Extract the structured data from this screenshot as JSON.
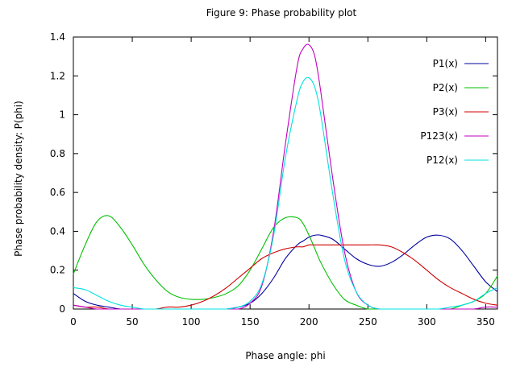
{
  "chart_data": {
    "type": "line",
    "title": "Figure 9:  Phase probability plot",
    "xlabel": "Phase angle: phi",
    "ylabel": "Phase probability density: P(phi)",
    "xlim": [
      0,
      360
    ],
    "ylim": [
      0,
      1.4
    ],
    "xticks": [
      "0",
      "50",
      "100",
      "150",
      "200",
      "250",
      "300",
      "350"
    ],
    "yticks": [
      "0",
      "0.2",
      "0.4",
      "0.6",
      "0.8",
      "1",
      "1.2",
      "1.4"
    ],
    "grid": false,
    "legend_position": "top-right",
    "x": [
      0,
      10,
      20,
      30,
      40,
      50,
      60,
      70,
      80,
      90,
      100,
      110,
      120,
      130,
      140,
      150,
      160,
      170,
      180,
      190,
      195,
      200,
      205,
      210,
      220,
      230,
      240,
      250,
      260,
      270,
      280,
      290,
      300,
      310,
      320,
      330,
      340,
      350,
      360
    ],
    "series": [
      {
        "name": "P1(x)",
        "color": "#0000a0",
        "values": [
          0.08,
          0.04,
          0.02,
          0.01,
          0.0,
          0.0,
          0.0,
          0.0,
          0.0,
          0.0,
          0.0,
          0.0,
          0.0,
          0.0,
          0.01,
          0.03,
          0.08,
          0.16,
          0.26,
          0.33,
          0.35,
          0.37,
          0.38,
          0.38,
          0.36,
          0.31,
          0.26,
          0.23,
          0.22,
          0.24,
          0.28,
          0.33,
          0.37,
          0.38,
          0.36,
          0.3,
          0.22,
          0.14,
          0.09
        ]
      },
      {
        "name": "P2(x)",
        "color": "#00c000",
        "values": [
          0.18,
          0.33,
          0.45,
          0.48,
          0.42,
          0.33,
          0.23,
          0.15,
          0.09,
          0.06,
          0.05,
          0.05,
          0.06,
          0.08,
          0.12,
          0.2,
          0.31,
          0.42,
          0.47,
          0.47,
          0.44,
          0.38,
          0.31,
          0.24,
          0.13,
          0.05,
          0.02,
          0.0,
          0.0,
          0.0,
          0.0,
          0.0,
          0.0,
          0.0,
          0.0,
          0.02,
          0.04,
          0.08,
          0.17
        ]
      },
      {
        "name": "P3(x)",
        "color": "#d00000",
        "values": [
          0.02,
          0.01,
          0.01,
          0.0,
          0.0,
          0.0,
          0.0,
          0.0,
          0.01,
          0.01,
          0.02,
          0.04,
          0.07,
          0.11,
          0.16,
          0.21,
          0.26,
          0.29,
          0.31,
          0.32,
          0.32,
          0.33,
          0.33,
          0.33,
          0.33,
          0.33,
          0.33,
          0.33,
          0.33,
          0.32,
          0.29,
          0.25,
          0.2,
          0.15,
          0.11,
          0.08,
          0.05,
          0.03,
          0.02
        ]
      },
      {
        "name": "P123(x)",
        "color": "#c000c0",
        "values": [
          0.02,
          0.01,
          0.0,
          0.0,
          0.0,
          0.0,
          0.0,
          0.0,
          0.0,
          0.0,
          0.0,
          0.0,
          0.0,
          0.0,
          0.0,
          0.03,
          0.12,
          0.4,
          0.85,
          1.25,
          1.34,
          1.36,
          1.3,
          1.12,
          0.68,
          0.3,
          0.09,
          0.02,
          0.0,
          0.0,
          0.0,
          0.0,
          0.0,
          0.0,
          0.0,
          0.0,
          0.0,
          0.01,
          0.01
        ]
      },
      {
        "name": "P12(x)",
        "color": "#00e0e0",
        "values": [
          0.11,
          0.1,
          0.07,
          0.04,
          0.02,
          0.01,
          0.0,
          0.0,
          0.0,
          0.0,
          0.0,
          0.0,
          0.0,
          0.0,
          0.01,
          0.04,
          0.13,
          0.38,
          0.78,
          1.08,
          1.17,
          1.19,
          1.14,
          1.0,
          0.6,
          0.26,
          0.09,
          0.02,
          0.0,
          0.0,
          0.0,
          0.0,
          0.0,
          0.0,
          0.01,
          0.02,
          0.04,
          0.08,
          0.11
        ]
      }
    ]
  }
}
